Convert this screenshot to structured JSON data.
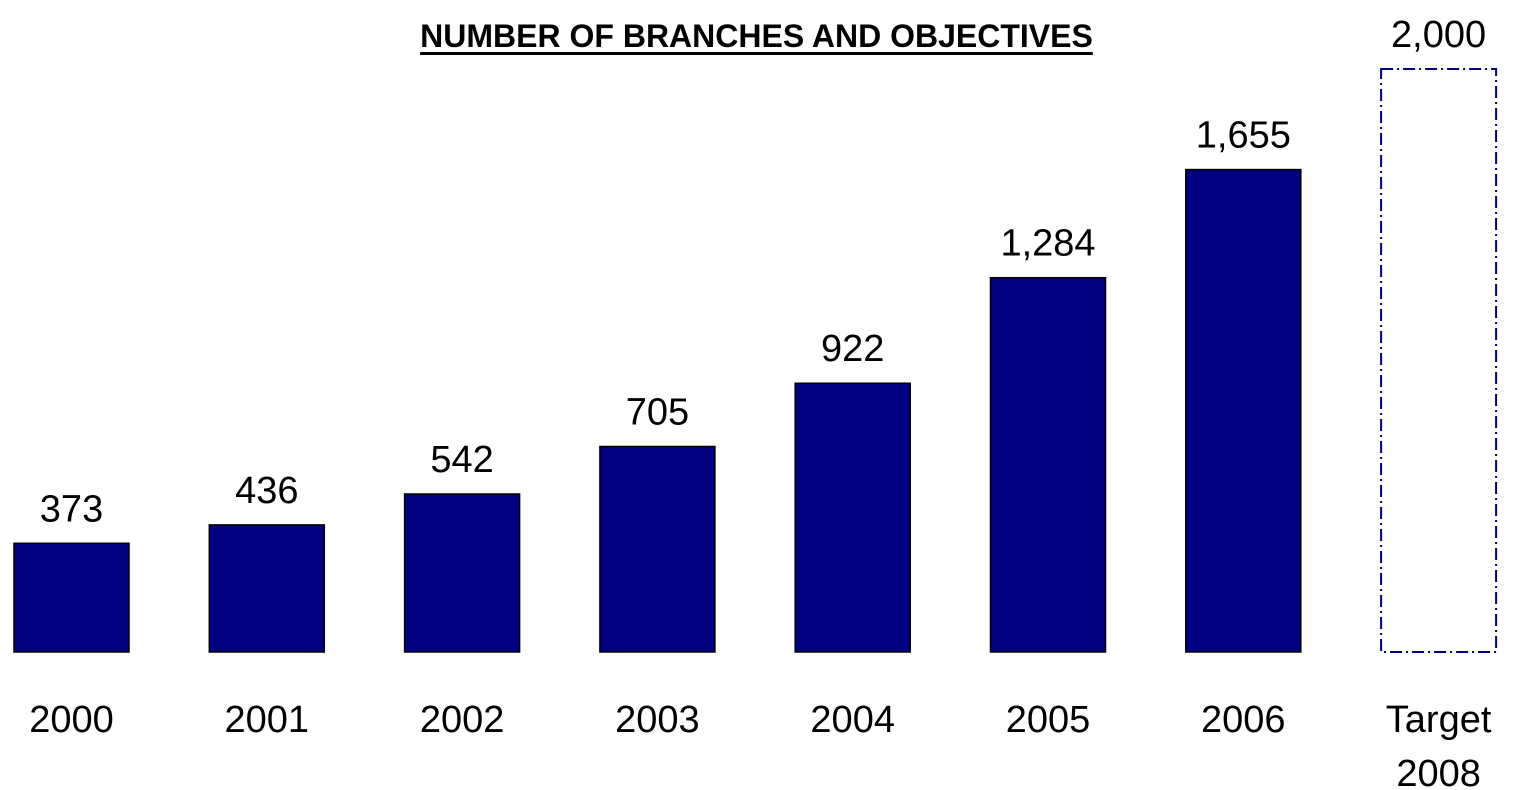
{
  "chart_data": {
    "type": "bar",
    "title": "NUMBER OF BRANCHES AND OBJECTIVES",
    "categories": [
      "2000",
      "2001",
      "2002",
      "2003",
      "2004",
      "2005",
      "2006",
      "Target 2008"
    ],
    "category_lines": [
      [
        "2000"
      ],
      [
        "2001"
      ],
      [
        "2002"
      ],
      [
        "2003"
      ],
      [
        "2004"
      ],
      [
        "2005"
      ],
      [
        "2006"
      ],
      [
        "Target",
        "2008"
      ]
    ],
    "values": [
      373,
      436,
      542,
      705,
      922,
      1284,
      1655,
      2000
    ],
    "value_labels": [
      "373",
      "436",
      "542",
      "705",
      "922",
      "1,284",
      "1,655",
      "2,000"
    ],
    "target_index": 7,
    "ylim": [
      0,
      2000
    ],
    "grid": false,
    "legend": "none",
    "colors": {
      "bar_fill": "#000080",
      "bar_stroke": "#000000",
      "target_stroke": "#000080"
    }
  }
}
